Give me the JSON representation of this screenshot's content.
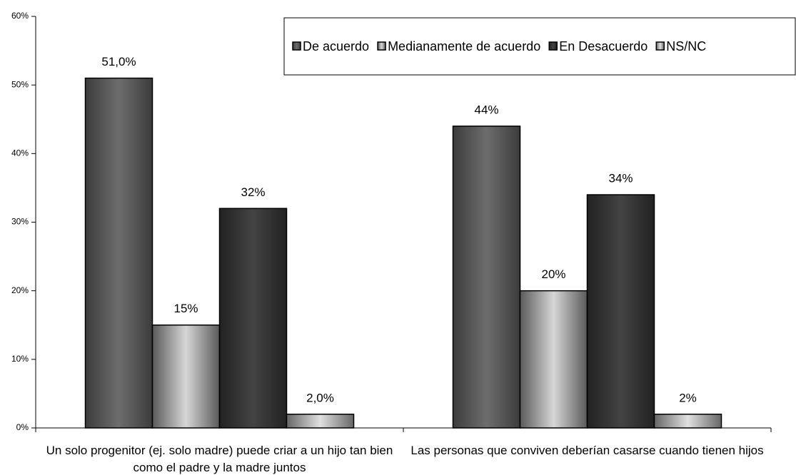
{
  "chart_data": {
    "type": "bar",
    "categories": [
      "Un solo progenitor (ej. solo madre) puede criar a un hijo tan bien como el padre y la madre juntos",
      "Las personas que conviven deberían casarse cuando tienen hijos"
    ],
    "series": [
      {
        "name": "De acuerdo",
        "color": "#3c3c3c",
        "values": [
          51,
          44
        ],
        "value_labels": [
          "51,0%",
          "44%"
        ]
      },
      {
        "name": "Medianamente de acuerdo",
        "color": "#5a5a5a",
        "values": [
          15,
          20
        ],
        "value_labels": [
          "15%",
          "20%"
        ]
      },
      {
        "name": "En Desacuerdo",
        "color": "#222222",
        "values": [
          32,
          34
        ],
        "value_labels": [
          "32%",
          "34%"
        ]
      },
      {
        "name": "NS/NC",
        "color": "#666666",
        "values": [
          2,
          2
        ],
        "value_labels": [
          "2,0%",
          "2%"
        ]
      }
    ],
    "ylim": [
      0,
      60
    ],
    "yticks": [
      {
        "value": 0,
        "label": "0%"
      },
      {
        "value": 10,
        "label": "10%"
      },
      {
        "value": 20,
        "label": "20%"
      },
      {
        "value": 30,
        "label": "30%"
      },
      {
        "value": 40,
        "label": "40%"
      },
      {
        "value": 50,
        "label": "50%"
      },
      {
        "value": 60,
        "label": "60%"
      }
    ],
    "legend": "top-right"
  }
}
